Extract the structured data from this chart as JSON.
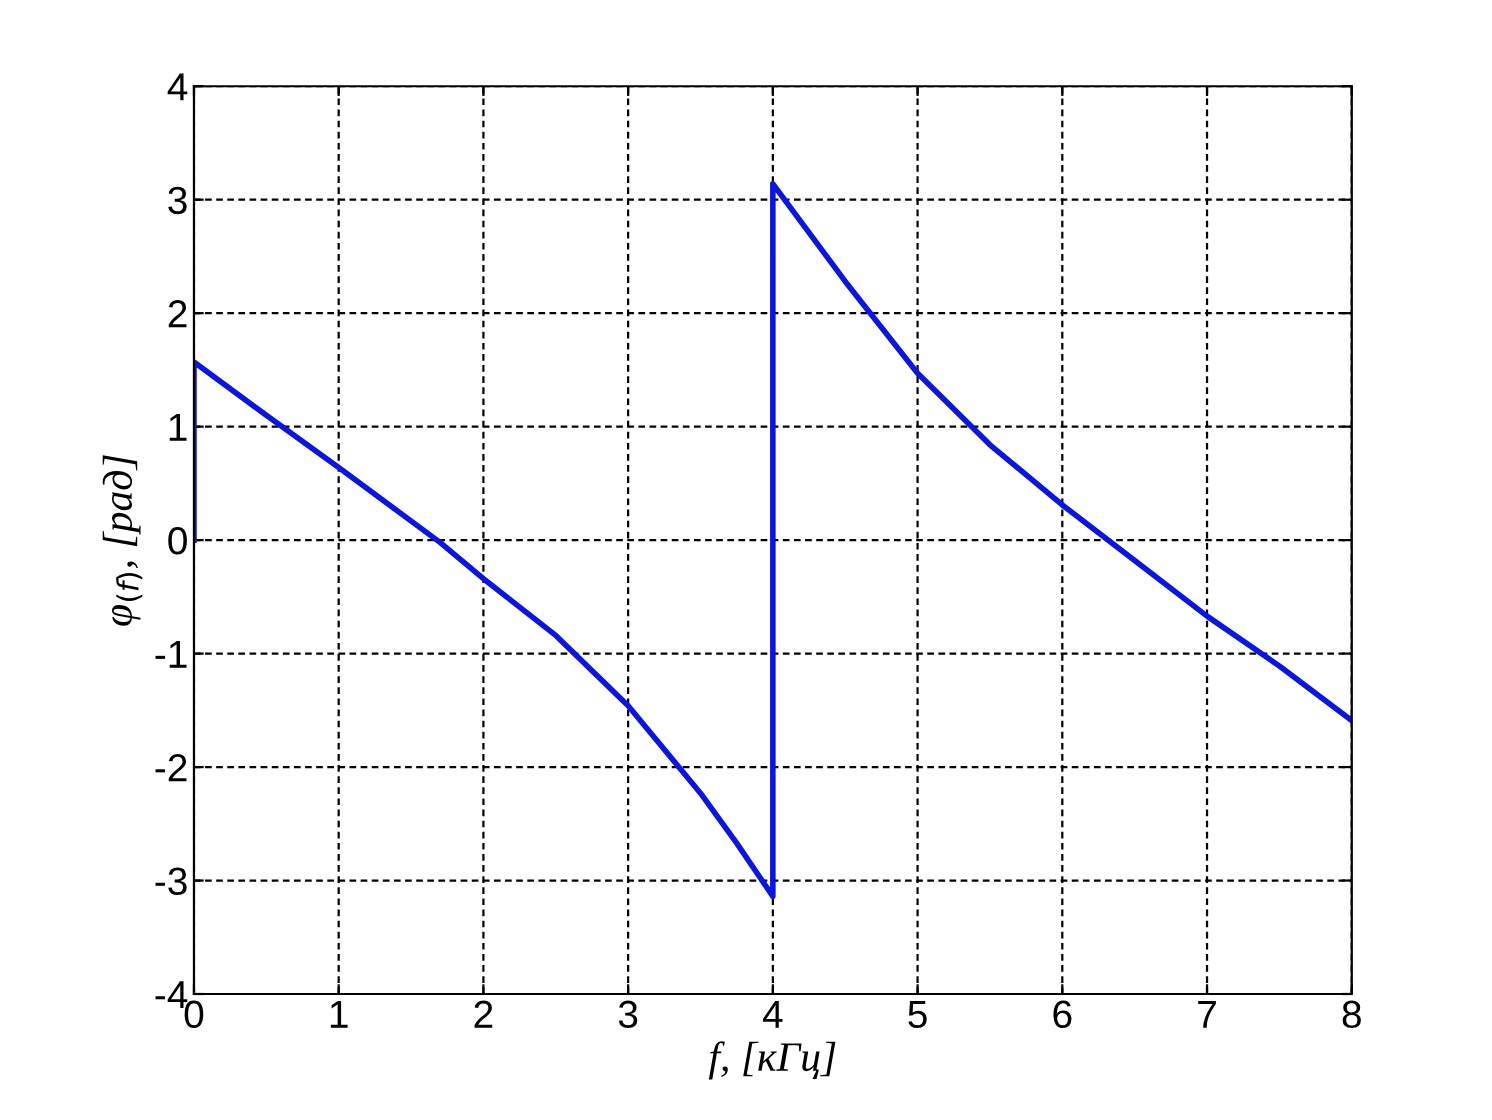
{
  "chart_data": {
    "type": "line",
    "xlabel": "f, [кГц]",
    "ylabel": "φ$_{(f)}$, [рад]",
    "series": [
      {
        "color": "#0a14e6",
        "x": [
          0,
          0,
          0.5,
          1,
          1.7,
          2,
          2.5,
          3,
          3.5,
          3.75,
          4,
          4,
          4.5,
          5,
          5.5,
          6,
          6.5,
          7,
          7.5,
          8
        ],
        "values": [
          0,
          1.57,
          1.1,
          0.64,
          -0.02,
          -0.34,
          -0.84,
          -1.46,
          -2.23,
          -2.67,
          -3.14,
          3.14,
          2.28,
          1.47,
          0.84,
          0.31,
          -0.18,
          -0.67,
          -1.11,
          -1.59
        ]
      }
    ],
    "xlim": [
      0,
      8
    ],
    "ylim": [
      -4,
      4
    ],
    "xticks": [
      0,
      1,
      2,
      3,
      4,
      5,
      6,
      7,
      8
    ],
    "yticks": [
      -4,
      -3,
      -2,
      -1,
      0,
      1,
      2,
      3,
      4
    ],
    "grid": true,
    "line_style": "solid",
    "marker": "none"
  }
}
